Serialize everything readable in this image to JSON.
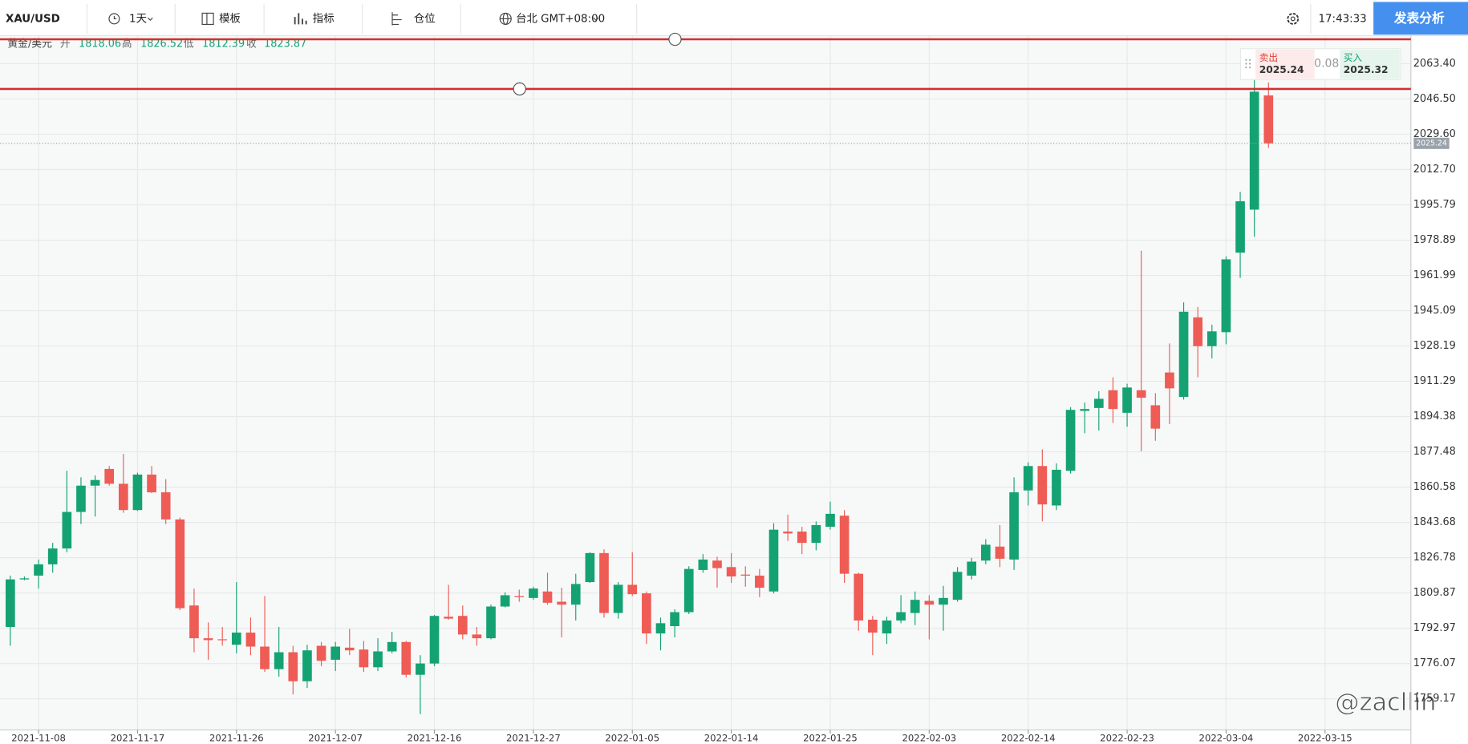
{
  "toolbar": {
    "symbol": "XAU/USD",
    "interval": "1天",
    "template": "模板",
    "indicators": "指标",
    "positions": "仓位",
    "timezone": "台北 GMT+08:00",
    "clock": "17:43:33",
    "publish": "发表分析"
  },
  "legend": {
    "name": "黄金/美元",
    "open_label": "开",
    "open": "1818.06",
    "high_label": "高",
    "high": "1826.52",
    "low_label": "低",
    "low": "1812.39",
    "close_label": "收",
    "close": "1823.87"
  },
  "trade": {
    "sell_label": "卖出",
    "sell": "2025.24",
    "spread": "0.08",
    "buy_label": "买入",
    "buy": "2025.32"
  },
  "watermark": "@zacllin",
  "chart_data": {
    "type": "candlestick",
    "categories": [
      null,
      null,
      "2021-11-08",
      null,
      null,
      null,
      null,
      null,
      null,
      "2021-11-17",
      null,
      null,
      null,
      null,
      null,
      null,
      "2021-11-26",
      null,
      null,
      null,
      null,
      null,
      null,
      "2021-12-07",
      null,
      null,
      null,
      null,
      null,
      null,
      "2021-12-16",
      null,
      null,
      null,
      null,
      null,
      null,
      "2021-12-27",
      null,
      null,
      null,
      null,
      null,
      null,
      "2022-01-05",
      null,
      null,
      null,
      null,
      null,
      null,
      "2022-01-14",
      null,
      null,
      null,
      null,
      null,
      null,
      "2022-01-25",
      null,
      null,
      null,
      null,
      null,
      null,
      "2022-02-03",
      null,
      null,
      null,
      null,
      null,
      null,
      "2022-02-14",
      null,
      null,
      null,
      null,
      null,
      null,
      "2022-02-23",
      null,
      null,
      null,
      null,
      null,
      null,
      "2022-03-04",
      null,
      null,
      null,
      null,
      null,
      null,
      "2022-03-15"
    ],
    "open": [
      1793.6,
      1816.4,
      1818.2,
      1823.6,
      1831.2,
      1848.7,
      1861.3,
      1869.3,
      1862.2,
      1849.6,
      1866.6,
      1858.1,
      1845.1,
      1803.9,
      1788.2,
      1787.7,
      1785.1,
      1790.9,
      1784.2,
      1773.4,
      1781.5,
      1767.6,
      1784.6,
      1777.9,
      1783.7,
      1782.8,
      1774.3,
      1781.9,
      1786.4,
      1770.7,
      1776.1,
      1798.5,
      1798.9,
      1790.0,
      1788.2,
      1803.4,
      1808.4,
      1807.5,
      1810.6,
      1805.7,
      1804.3,
      1815.1,
      1829.0,
      1800.3,
      1813.8,
      1809.7,
      1790.5,
      1794.0,
      1800.7,
      1820.9,
      1825.4,
      1822.3,
      1818.7,
      1818.2,
      1810.6,
      1839.3,
      1839.3,
      1833.9,
      1841.6,
      1846.9,
      1819.1,
      1797.1,
      1790.5,
      1796.7,
      1800.3,
      1806.1,
      1804.3,
      1806.6,
      1818.2,
      1825.4,
      1832.1,
      1825.9,
      1859.0,
      1870.7,
      1851.8,
      1868.4,
      1897.1,
      1898.5,
      1907.0,
      1896.2,
      1907.0,
      1899.8,
      1915.5,
      1903.8,
      1941.9,
      1928.1,
      1934.8,
      1972.9,
      1993.5,
      2048.2,
      null,
      null,
      null,
      null
    ],
    "high": [
      1818.2,
      1817.8,
      1825.9,
      1833.9,
      1868.4,
      1865.3,
      1866.2,
      1870.7,
      1876.5,
      1867.5,
      1870.7,
      1864.4,
      1846.0,
      1812.0,
      1795.8,
      1793.6,
      1815.1,
      1798.1,
      1808.4,
      1793.6,
      1784.6,
      1785.1,
      1786.4,
      1786.4,
      1792.7,
      1786.9,
      1788.2,
      1791.3,
      1786.9,
      1780.1,
      1799.4,
      1813.8,
      1803.9,
      1793.6,
      1804.3,
      1810.2,
      1811.5,
      1812.9,
      1819.6,
      1812.4,
      1819.1,
      1829.4,
      1830.8,
      1815.1,
      1829.4,
      1810.6,
      1798.1,
      1802.1,
      1822.7,
      1828.5,
      1827.2,
      1829.0,
      1822.7,
      1821.4,
      1843.3,
      1847.4,
      1841.6,
      1844.2,
      1853.6,
      1849.6,
      1819.6,
      1798.9,
      1798.5,
      1808.8,
      1810.6,
      1808.8,
      1813.3,
      1822.3,
      1826.7,
      1835.7,
      1842.4,
      1865.3,
      1872.5,
      1878.7,
      1872.0,
      1898.9,
      1901.1,
      1906.5,
      1913.2,
      1910.1,
      1973.8,
      1905.6,
      1929.4,
      1949.1,
      1946.9,
      1938.4,
      1971.1,
      2002.0,
      2055.8,
      2054.4,
      null,
      null,
      null,
      null
    ],
    "low": [
      1784.6,
      1816.0,
      1812.0,
      1819.6,
      1829.4,
      1842.9,
      1846.5,
      1861.3,
      1848.3,
      1849.2,
      1857.7,
      1842.9,
      1801.7,
      1781.5,
      1777.9,
      1784.6,
      1781.0,
      1780.1,
      1772.1,
      1769.8,
      1761.3,
      1764.4,
      1774.8,
      1772.5,
      1780.1,
      1772.1,
      1772.5,
      1781.0,
      1769.4,
      1751.9,
      1774.8,
      1797.1,
      1787.7,
      1784.6,
      1787.7,
      1803.0,
      1805.7,
      1806.6,
      1804.3,
      1788.6,
      1796.7,
      1814.7,
      1798.1,
      1797.6,
      1808.4,
      1785.5,
      1782.4,
      1788.6,
      1799.8,
      1819.6,
      1812.4,
      1814.7,
      1812.9,
      1807.9,
      1809.7,
      1834.8,
      1828.5,
      1830.3,
      1840.2,
      1814.7,
      1791.8,
      1780.1,
      1785.5,
      1795.4,
      1794.5,
      1787.7,
      1791.8,
      1805.7,
      1816.4,
      1823.6,
      1822.3,
      1820.9,
      1851.8,
      1844.2,
      1849.6,
      1867.1,
      1886.4,
      1887.7,
      1891.3,
      1889.5,
      1877.8,
      1882.8,
      1890.8,
      1902.5,
      1913.2,
      1922.2,
      1929.0,
      1960.8,
      1980.5,
      2023.1,
      null,
      null,
      null,
      null
    ],
    "close": [
      1816.4,
      1816.9,
      1823.6,
      1831.2,
      1848.7,
      1861.3,
      1864.0,
      1862.2,
      1849.6,
      1866.6,
      1858.1,
      1845.1,
      1802.6,
      1788.2,
      1787.3,
      1787.3,
      1790.9,
      1784.2,
      1773.4,
      1781.5,
      1767.6,
      1782.4,
      1777.4,
      1784.2,
      1782.4,
      1774.3,
      1781.9,
      1786.4,
      1770.7,
      1776.1,
      1798.9,
      1797.6,
      1790.0,
      1788.2,
      1803.4,
      1808.8,
      1807.9,
      1812.0,
      1805.2,
      1804.3,
      1814.2,
      1829.0,
      1800.3,
      1813.8,
      1809.3,
      1790.5,
      1795.4,
      1800.7,
      1821.4,
      1825.9,
      1821.8,
      1817.8,
      1818.2,
      1812.4,
      1840.2,
      1838.4,
      1833.9,
      1842.4,
      1847.8,
      1819.1,
      1796.7,
      1790.9,
      1796.7,
      1800.7,
      1806.6,
      1804.3,
      1807.5,
      1820.0,
      1824.9,
      1833.0,
      1826.3,
      1858.1,
      1870.7,
      1852.3,
      1868.9,
      1897.6,
      1898.0,
      1902.9,
      1898.0,
      1908.3,
      1903.4,
      1888.6,
      1907.9,
      1944.6,
      1928.1,
      1935.2,
      1969.7,
      1997.5,
      2050.0,
      2025.24,
      null,
      null,
      null,
      null
    ],
    "up_color": "#15a273",
    "down_color": "#ee5c55",
    "ylim": [
      1744.3,
      2076.85
    ],
    "yticks": [
      1759.17,
      1776.07,
      1792.97,
      1809.87,
      1826.78,
      1843.68,
      1860.58,
      1877.48,
      1894.38,
      1911.29,
      1928.19,
      1945.09,
      1961.99,
      1978.89,
      1995.79,
      {
        "value": 2012.7,
        "label": "2012.70"
      },
      {
        "value": 2029.6,
        "label": "2029.60"
      },
      {
        "value": 2046.5,
        "label": "2046.50"
      },
      {
        "value": 2063.4,
        "label": "2063.40"
      }
    ],
    "grid": true,
    "hlines": [
      2075.1,
      2051.3
    ],
    "hline_color": "#d32f2f",
    "last_price": 2025.24
  }
}
